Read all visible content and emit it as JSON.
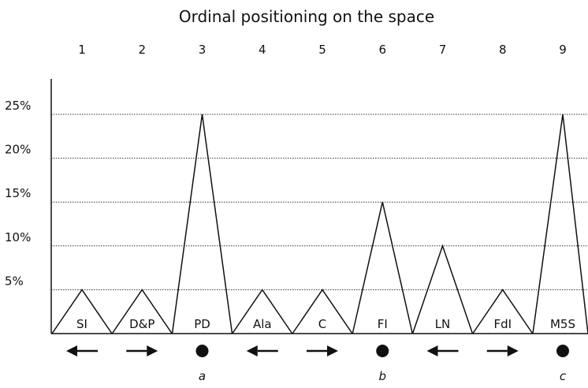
{
  "chart_data": {
    "type": "line",
    "title": "Ordinal positioning on the space",
    "x_positions": [
      "1",
      "2",
      "3",
      "4",
      "5",
      "6",
      "7",
      "8",
      "9"
    ],
    "y_ticks": [
      "5%",
      "10%",
      "15%",
      "20%",
      "25%"
    ],
    "ylim": [
      0,
      25
    ],
    "grid": "horizontal dotted",
    "series": [
      {
        "values": [
          5,
          5,
          25,
          5,
          5,
          15,
          10,
          5,
          25
        ]
      }
    ],
    "peak_labels": [
      "SI",
      "D&P",
      "PD",
      "Ala",
      "C",
      "FI",
      "LN",
      "FdI",
      "M5S"
    ],
    "markers": [
      "arrow-left",
      "arrow-right",
      "dot",
      "arrow-left",
      "arrow-right",
      "dot",
      "arrow-left",
      "arrow-right",
      "dot"
    ],
    "dot_labels": [
      "a",
      "b",
      "c"
    ]
  },
  "colors": {
    "line": "#111111",
    "grid": "#333333",
    "background": "#ffffff"
  }
}
